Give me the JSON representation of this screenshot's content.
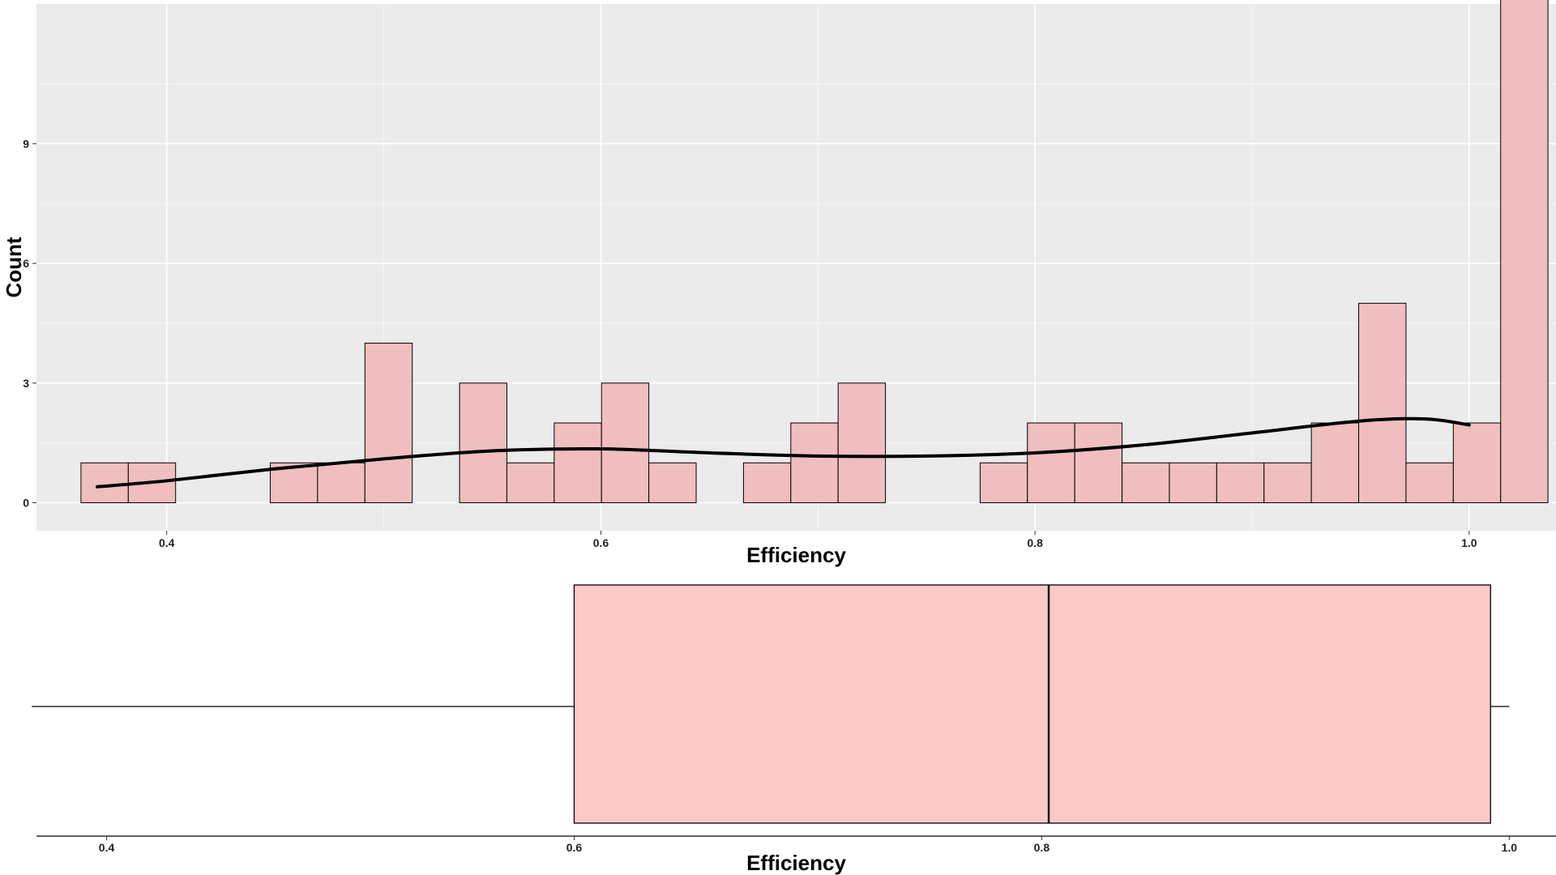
{
  "chart_data": [
    {
      "type": "bar",
      "subtype": "histogram",
      "title": "",
      "xlabel": "Efficiency",
      "ylabel": "Count",
      "xlim": [
        0.34,
        1.04
      ],
      "ylim": [
        -0.7,
        12.5
      ],
      "x_ticks": [
        0.4,
        0.6,
        0.8,
        1.0
      ],
      "x_tick_labels": [
        "0.4",
        "0.6",
        "0.8",
        "1.0"
      ],
      "y_ticks": [
        0,
        3,
        6,
        9
      ],
      "y_tick_labels": [
        "0",
        "3",
        "6",
        "9"
      ],
      "grid": true,
      "background": "#EBEBEB",
      "bin_width": 0.0218,
      "bin_start": 0.3605,
      "bar_fill": "#F0BEBE",
      "bar_stroke": "#000000",
      "counts": [
        1,
        1,
        0,
        0,
        1,
        1,
        4,
        0,
        3,
        1,
        2,
        3,
        1,
        0,
        1,
        2,
        3,
        0,
        0,
        1,
        2,
        2,
        1,
        1,
        1,
        1,
        2,
        5,
        1,
        2,
        13
      ],
      "smooth_line": {
        "x": [
          0.368,
          0.4,
          0.45,
          0.5,
          0.55,
          0.6,
          0.65,
          0.7,
          0.75,
          0.8,
          0.85,
          0.9,
          0.95,
          0.98,
          1.0
        ],
        "y": [
          0.4,
          0.55,
          0.85,
          1.1,
          1.3,
          1.35,
          1.25,
          1.17,
          1.17,
          1.25,
          1.45,
          1.75,
          2.05,
          2.1,
          1.95
        ],
        "color": "#000000"
      }
    },
    {
      "type": "box",
      "title": "",
      "xlabel": "Efficiency",
      "xlim": [
        0.37,
        1.02
      ],
      "x_ticks": [
        0.4,
        0.6,
        0.8,
        1.0
      ],
      "x_tick_labels": [
        "0.4",
        "0.6",
        "0.8",
        "1.0"
      ],
      "min": 0.368,
      "q1": 0.6,
      "median": 0.803,
      "q3": 0.992,
      "max": 1.0,
      "fill": "#FCC8C8",
      "stroke": "#000000"
    }
  ]
}
